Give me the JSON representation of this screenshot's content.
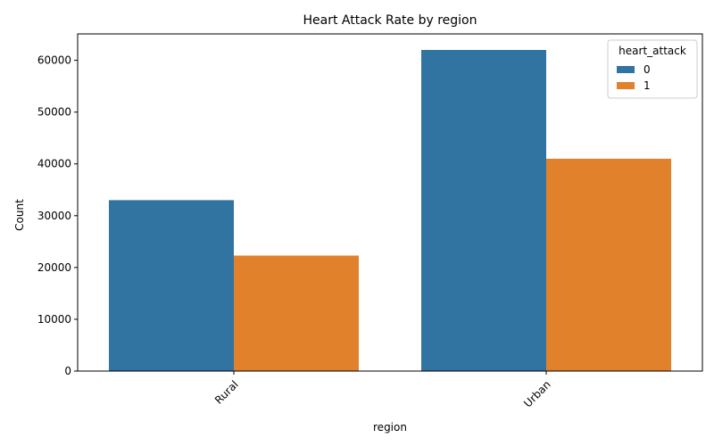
{
  "chart_data": {
    "type": "bar",
    "title": "Heart Attack Rate by region",
    "xlabel": "region",
    "ylabel": "Count",
    "categories": [
      "Rural",
      "Urban"
    ],
    "legend_title": "heart_attack",
    "legend_position": "top-right",
    "series": [
      {
        "name": "0",
        "color": "#3274a1",
        "values": [
          33000,
          62000
        ]
      },
      {
        "name": "1",
        "color": "#e1812c",
        "values": [
          22300,
          41000
        ]
      }
    ],
    "ylim": [
      0,
      65100
    ],
    "yticks": [
      0,
      10000,
      20000,
      30000,
      40000,
      50000,
      60000
    ],
    "grid": false,
    "xtick_rotation_deg": 45
  }
}
